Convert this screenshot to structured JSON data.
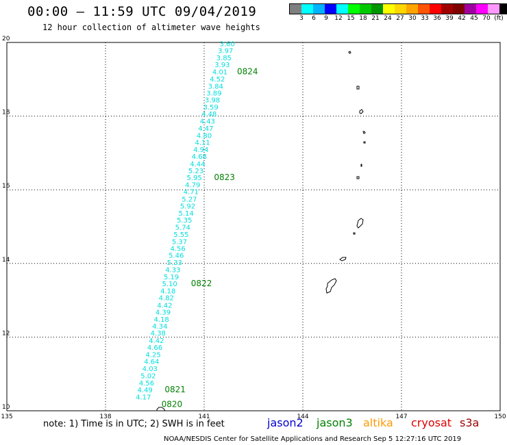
{
  "header": {
    "title": "00:00 – 11:59 UTC 09/04/2019",
    "subtitle": "12 hour collection of altimeter wave heights"
  },
  "colorbar": {
    "colors": [
      "#7f7f7f",
      "#00ffff",
      "#00b2ff",
      "#0000ff",
      "#00ffff",
      "#00ff00",
      "#00c800",
      "#009600",
      "#ffff00",
      "#ffd700",
      "#ffa500",
      "#ff5500",
      "#ff0000",
      "#a00000",
      "#800000",
      "#a000a0",
      "#ff00ff",
      "#ff99ff",
      "#000000"
    ],
    "tick_labels": [
      "3",
      "6",
      "9",
      "12",
      "15",
      "18",
      "21",
      "24",
      "27",
      "30",
      "33",
      "36",
      "39",
      "42",
      "45",
      "70",
      "(ft)"
    ]
  },
  "map": {
    "lon_range": [
      135,
      150
    ],
    "lat_range": [
      10,
      20
    ],
    "lon_ticks": [
      "135",
      "138",
      "141",
      "144",
      "147",
      "150"
    ],
    "lat_ticks": [
      "20",
      "18",
      "16",
      "14",
      "12",
      "10"
    ],
    "grid": "dotted",
    "track_color": "#00dddd",
    "time_label_color": "#008000"
  },
  "chart_data": {
    "type": "scatter",
    "series": [
      {
        "points": [
          {
            "lon": 141.7,
            "lat": 19.9,
            "v": "3.60"
          },
          {
            "lon": 141.65,
            "lat": 19.71,
            "v": "3.97"
          },
          {
            "lon": 141.6,
            "lat": 19.52,
            "v": "3.85"
          },
          {
            "lon": 141.55,
            "lat": 19.33,
            "v": "3.93"
          },
          {
            "lon": 141.48,
            "lat": 19.14,
            "v": "4.01"
          },
          {
            "lon": 141.4,
            "lat": 18.94,
            "v": "4.52"
          },
          {
            "lon": 141.35,
            "lat": 18.75,
            "v": "3.84"
          },
          {
            "lon": 141.3,
            "lat": 18.56,
            "v": "3.89"
          },
          {
            "lon": 141.25,
            "lat": 18.37,
            "v": "3.98"
          },
          {
            "lon": 141.2,
            "lat": 18.18,
            "v": "3.59"
          },
          {
            "lon": 141.15,
            "lat": 17.99,
            "v": "4.48"
          },
          {
            "lon": 141.1,
            "lat": 17.8,
            "v": "4.43"
          },
          {
            "lon": 141.05,
            "lat": 17.6,
            "v": "4.47"
          },
          {
            "lon": 141.0,
            "lat": 17.41,
            "v": "4.80"
          },
          {
            "lon": 140.95,
            "lat": 17.22,
            "v": "4.11"
          },
          {
            "lon": 140.9,
            "lat": 17.03,
            "v": "4.94"
          },
          {
            "lon": 140.85,
            "lat": 16.84,
            "v": "4.68"
          },
          {
            "lon": 140.8,
            "lat": 16.64,
            "v": "4.44"
          },
          {
            "lon": 140.75,
            "lat": 16.45,
            "v": "5.23"
          },
          {
            "lon": 140.7,
            "lat": 16.26,
            "v": "5.95"
          },
          {
            "lon": 140.65,
            "lat": 16.07,
            "v": "4.79"
          },
          {
            "lon": 140.6,
            "lat": 15.88,
            "v": "4.71"
          },
          {
            "lon": 140.55,
            "lat": 15.68,
            "v": "5.27"
          },
          {
            "lon": 140.5,
            "lat": 15.49,
            "v": "5.92"
          },
          {
            "lon": 140.45,
            "lat": 15.3,
            "v": "5.14"
          },
          {
            "lon": 140.4,
            "lat": 15.11,
            "v": "5.35"
          },
          {
            "lon": 140.35,
            "lat": 14.92,
            "v": "5.74"
          },
          {
            "lon": 140.3,
            "lat": 14.72,
            "v": "5.55"
          },
          {
            "lon": 140.25,
            "lat": 14.53,
            "v": "5.37"
          },
          {
            "lon": 140.2,
            "lat": 14.34,
            "v": "4.56"
          },
          {
            "lon": 140.15,
            "lat": 14.15,
            "v": "5.46"
          },
          {
            "lon": 140.1,
            "lat": 13.96,
            "v": "5.33"
          },
          {
            "lon": 140.05,
            "lat": 13.76,
            "v": "4.33"
          },
          {
            "lon": 140.0,
            "lat": 13.57,
            "v": "5.19"
          },
          {
            "lon": 139.95,
            "lat": 13.38,
            "v": "5.10"
          },
          {
            "lon": 139.9,
            "lat": 13.19,
            "v": "4.18"
          },
          {
            "lon": 139.85,
            "lat": 13.0,
            "v": "4.82"
          },
          {
            "lon": 139.8,
            "lat": 12.8,
            "v": "4.42"
          },
          {
            "lon": 139.75,
            "lat": 12.61,
            "v": "4.39"
          },
          {
            "lon": 139.7,
            "lat": 12.42,
            "v": "4.18"
          },
          {
            "lon": 139.65,
            "lat": 12.23,
            "v": "4.34"
          },
          {
            "lon": 139.6,
            "lat": 12.04,
            "v": "4.38"
          },
          {
            "lon": 139.55,
            "lat": 11.84,
            "v": "4.42"
          },
          {
            "lon": 139.5,
            "lat": 11.65,
            "v": "4.66"
          },
          {
            "lon": 139.45,
            "lat": 11.46,
            "v": "4.25"
          },
          {
            "lon": 139.4,
            "lat": 11.27,
            "v": "4.64"
          },
          {
            "lon": 139.35,
            "lat": 11.08,
            "v": "4.03"
          },
          {
            "lon": 139.3,
            "lat": 10.88,
            "v": "5.02"
          },
          {
            "lon": 139.25,
            "lat": 10.69,
            "v": "4.56"
          },
          {
            "lon": 139.2,
            "lat": 10.5,
            "v": "4.49"
          },
          {
            "lon": 139.15,
            "lat": 10.31,
            "v": "4.17"
          }
        ]
      }
    ],
    "time_labels": [
      {
        "text": "0824",
        "lon": 142.0,
        "lat": 19.14
      },
      {
        "text": "0823",
        "lon": 141.3,
        "lat": 16.26
      },
      {
        "text": "0822",
        "lon": 140.6,
        "lat": 13.38
      },
      {
        "text": "0821",
        "lon": 139.8,
        "lat": 10.5
      },
      {
        "text": "0820",
        "lon": 139.7,
        "lat": 10.1
      }
    ]
  },
  "footer": {
    "note": "note:  1) Time is in UTC;  2) SWH is in feet",
    "legend": [
      {
        "name": "jason2",
        "color": "#0000cc"
      },
      {
        "name": "jason3",
        "color": "#008000"
      },
      {
        "name": "altika",
        "color": "#ff9900"
      },
      {
        "name": "cryosat",
        "color": "#dd0000"
      },
      {
        "name": "s3a",
        "color": "#990000"
      }
    ],
    "credit": "NOAA/NESDIS Center for Satellite Applications and Research     Sep  5 12:27:16 UTC 2019"
  }
}
